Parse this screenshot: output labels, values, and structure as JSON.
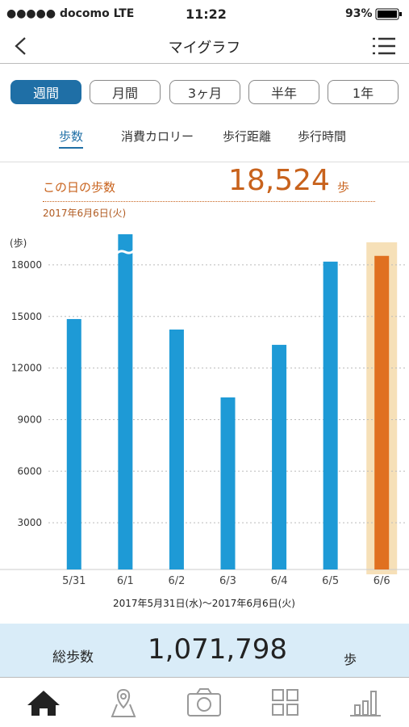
{
  "status": {
    "carrier": "●●●●● docomo LTE",
    "time": "11:22",
    "battery": "93%"
  },
  "header": {
    "title": "マイグラフ"
  },
  "periods": [
    "週間",
    "月間",
    "3ヶ月",
    "半年",
    "1年"
  ],
  "metrics": [
    "歩数",
    "消費カロリー",
    "歩行距離",
    "歩行時間"
  ],
  "selected": {
    "label": "この日の歩数",
    "value_label": "18,524",
    "unit": "歩",
    "date": "2017年6月6日(火)"
  },
  "chart_data": {
    "type": "bar",
    "y_label": "(歩)",
    "categories": [
      "5/31",
      "6/1",
      "6/2",
      "6/3",
      "6/4",
      "6/5",
      "6/6"
    ],
    "values": [
      14850,
      21000,
      14240,
      10290,
      13350,
      18190,
      18524
    ],
    "colors": [
      "#1e9ad6",
      "#1e9ad6",
      "#1e9ad6",
      "#1e9ad6",
      "#1e9ad6",
      "#1e9ad6",
      "#e07020"
    ],
    "highlight": "6/6",
    "highlight_color": "#f6e0b8",
    "ylim": [
      0,
      19500
    ],
    "yticks": [
      3000,
      6000,
      9000,
      12000,
      15000,
      18000
    ],
    "grid": true,
    "range_label": "2017年5月31日(水)～2017年6月6日(火)"
  },
  "total": {
    "label": "総歩数",
    "value": "1,071,798",
    "unit": "歩"
  }
}
